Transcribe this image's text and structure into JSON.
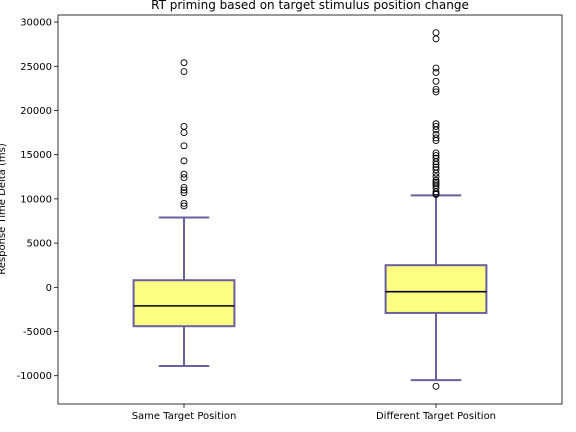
{
  "chart_data": {
    "type": "box",
    "title": "RT priming based on target stimulus position change",
    "xlabel": "",
    "ylabel": "Response Time Delta (ms)",
    "categories": [
      "Same Target Position",
      "Different Target Position"
    ],
    "ylim": [
      -13200,
      30800
    ],
    "yticks": [
      -10000,
      -5000,
      0,
      5000,
      10000,
      15000,
      20000,
      25000,
      30000
    ],
    "grid": false,
    "colors": {
      "box_fill": "#fbfe80",
      "box_edge": "#6a5f9e",
      "median": "#000000",
      "flier_edge": "#000000"
    },
    "boxes": [
      {
        "name": "Same Target Position",
        "whisker_low": -8900,
        "q1": -4400,
        "median": -2100,
        "q3": 800,
        "whisker_high": 7900,
        "fliers": [
          9200,
          9500,
          10700,
          11000,
          11300,
          12400,
          12800,
          14300,
          16000,
          17500,
          18200,
          24400,
          25400
        ]
      },
      {
        "name": "Different Target Position",
        "whisker_low": -10500,
        "q1": -2900,
        "median": -500,
        "q3": 2500,
        "whisker_high": 10400,
        "fliers": [
          -11200,
          10500,
          10600,
          10800,
          11200,
          11500,
          11700,
          11900,
          12100,
          12500,
          12900,
          13300,
          13600,
          13900,
          14200,
          14600,
          14900,
          15200,
          16600,
          16900,
          17300,
          17800,
          18200,
          18500,
          22100,
          22400,
          23300,
          24300,
          24800,
          28100,
          28800
        ]
      }
    ]
  }
}
